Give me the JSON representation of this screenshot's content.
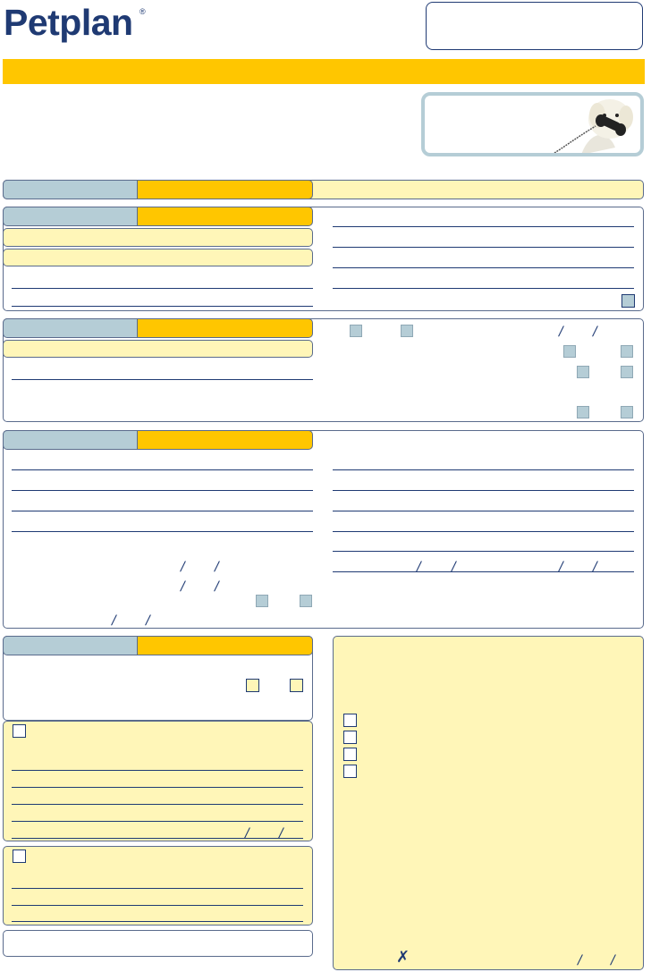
{
  "brand": {
    "name": "Petplan",
    "registered_mark": "®"
  },
  "colors": {
    "navy": "#1f3a73",
    "gold": "#ffc600",
    "pale_yellow": "#fff6b8",
    "steel_blue": "#b5cdd6"
  },
  "icons": {
    "dog_phone": "dog-with-telephone-icon",
    "signature_mark": "cross-mark-icon"
  },
  "signature": {
    "mark": "✗"
  }
}
